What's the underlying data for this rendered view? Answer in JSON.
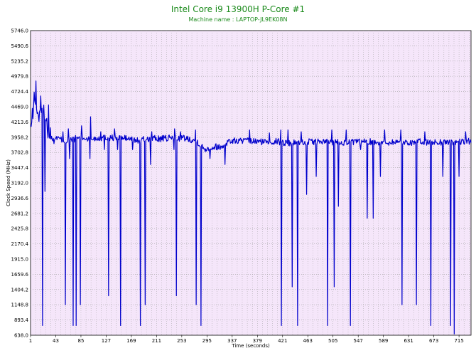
{
  "chart_data": {
    "type": "line",
    "title": "Intel Core i9 13900H P-Core #1",
    "subtitle": "Machine name : LAPTOP-JL9EK08N",
    "xlabel": "Time (seconds)",
    "ylabel": "Clock Speed (MHz)",
    "xlim": [
      1,
      735
    ],
    "ylim": [
      638.0,
      5746.0
    ],
    "x_ticks": [
      "1",
      "43",
      "85",
      "127",
      "169",
      "211",
      "253",
      "295",
      "337",
      "379",
      "421",
      "463",
      "505",
      "547",
      "589",
      "631",
      "673",
      "715"
    ],
    "y_ticks": [
      "638.0",
      "893.4",
      "1148.8",
      "1404.2",
      "1659.6",
      "1915.0",
      "2170.4",
      "2425.8",
      "2681.2",
      "2936.6",
      "3192.0",
      "3447.4",
      "3702.8",
      "3958.2",
      "4213.6",
      "4469.0",
      "4724.4",
      "4979.8",
      "5235.2",
      "5490.6",
      "5746.0"
    ],
    "grid": true,
    "legend": "none",
    "colors": {
      "line": "#0000cc",
      "plot_bg": "#f5e6fa",
      "grid": "#a0a0a0",
      "title": "#1a8a1a"
    },
    "series": [
      {
        "baseline": [
          [
            1,
            4100
          ],
          [
            5,
            4350
          ],
          [
            8,
            4700
          ],
          [
            11,
            4500
          ],
          [
            14,
            4250
          ],
          [
            17,
            4450
          ],
          [
            20,
            4300
          ],
          [
            24,
            4400
          ],
          [
            28,
            4150
          ],
          [
            32,
            4050
          ],
          [
            36,
            3950
          ],
          [
            45,
            3950
          ],
          [
            60,
            3880
          ],
          [
            80,
            3950
          ],
          [
            100,
            3930
          ],
          [
            120,
            3950
          ],
          [
            140,
            3950
          ],
          [
            160,
            3940
          ],
          [
            180,
            3900
          ],
          [
            200,
            3940
          ],
          [
            220,
            3930
          ],
          [
            240,
            3950
          ],
          [
            260,
            3940
          ],
          [
            278,
            3900
          ],
          [
            290,
            3760
          ],
          [
            300,
            3780
          ],
          [
            310,
            3800
          ],
          [
            320,
            3790
          ],
          [
            330,
            3890
          ],
          [
            350,
            3900
          ],
          [
            370,
            3890
          ],
          [
            390,
            3880
          ],
          [
            410,
            3890
          ],
          [
            430,
            3860
          ],
          [
            450,
            3870
          ],
          [
            470,
            3880
          ],
          [
            490,
            3880
          ],
          [
            510,
            3880
          ],
          [
            530,
            3870
          ],
          [
            550,
            3880
          ],
          [
            570,
            3880
          ],
          [
            590,
            3870
          ],
          [
            610,
            3880
          ],
          [
            630,
            3870
          ],
          [
            650,
            3880
          ],
          [
            670,
            3870
          ],
          [
            690,
            3880
          ],
          [
            710,
            3870
          ],
          [
            735,
            3890
          ]
        ],
        "dips": [
          [
            21,
            800
          ],
          [
            25,
            3050
          ],
          [
            40,
            3850
          ],
          [
            59,
            1150
          ],
          [
            66,
            3600
          ],
          [
            72,
            800
          ],
          [
            77,
            800
          ],
          [
            84,
            1150
          ],
          [
            100,
            3600
          ],
          [
            124,
            3750
          ],
          [
            131,
            1300
          ],
          [
            146,
            3750
          ],
          [
            151,
            800
          ],
          [
            171,
            3750
          ],
          [
            184,
            800
          ],
          [
            192,
            1150
          ],
          [
            201,
            3500
          ],
          [
            240,
            3750
          ],
          [
            244,
            1300
          ],
          [
            277,
            1150
          ],
          [
            285,
            800
          ],
          [
            300,
            3600
          ],
          [
            325,
            3500
          ],
          [
            419,
            800
          ],
          [
            437,
            1450
          ],
          [
            446,
            800
          ],
          [
            461,
            3000
          ],
          [
            477,
            3300
          ],
          [
            496,
            800
          ],
          [
            507,
            1450
          ],
          [
            514,
            2800
          ],
          [
            534,
            800
          ],
          [
            551,
            3750
          ],
          [
            562,
            2600
          ],
          [
            572,
            2600
          ],
          [
            584,
            3300
          ],
          [
            620,
            1150
          ],
          [
            644,
            1150
          ],
          [
            668,
            800
          ],
          [
            688,
            3300
          ],
          [
            701,
            800
          ],
          [
            707,
            660
          ],
          [
            715,
            3300
          ]
        ],
        "spikes": [
          [
            10,
            4900
          ],
          [
            18,
            4650
          ],
          [
            31,
            4500
          ],
          [
            55,
            4050
          ],
          [
            64,
            4100
          ],
          [
            86,
            4150
          ],
          [
            101,
            4300
          ],
          [
            118,
            4050
          ],
          [
            141,
            4100
          ],
          [
            171,
            4050
          ],
          [
            203,
            4050
          ],
          [
            241,
            4100
          ],
          [
            251,
            4050
          ],
          [
            276,
            4080
          ],
          [
            300,
            4080
          ],
          [
            366,
            4080
          ],
          [
            399,
            4030
          ],
          [
            418,
            4080
          ],
          [
            430,
            4080
          ],
          [
            452,
            4050
          ],
          [
            503,
            4080
          ],
          [
            527,
            4080
          ],
          [
            591,
            4080
          ],
          [
            618,
            4080
          ],
          [
            658,
            4050
          ],
          [
            726,
            4050
          ]
        ]
      }
    ]
  }
}
